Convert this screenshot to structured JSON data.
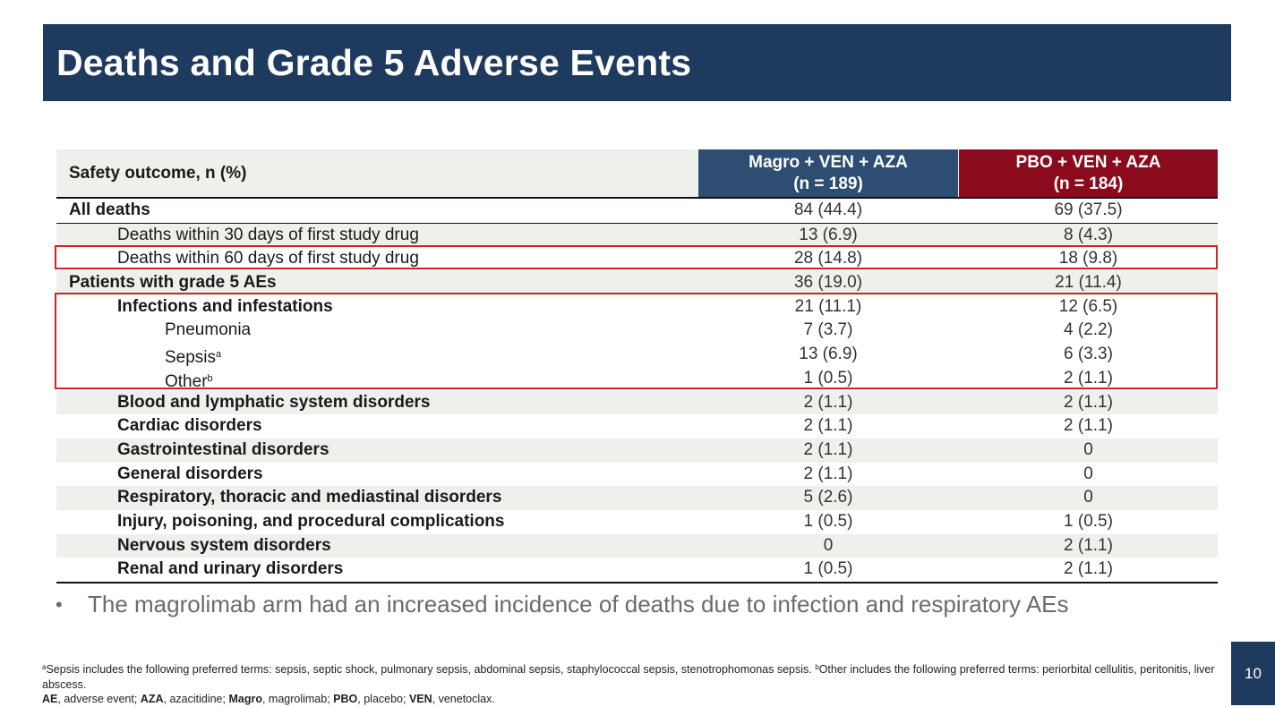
{
  "title": "Deaths and Grade 5 Adverse Events",
  "table": {
    "header_label": "Safety outcome, n (%)",
    "col1": {
      "line1": "Magro + VEN + AZA",
      "line2": "(n = 189)",
      "color": "#2e4d72"
    },
    "col2": {
      "line1": "PBO + VEN + AZA",
      "line2": "(n = 184)",
      "color": "#8b0a1c"
    },
    "rows": [
      {
        "label": "All deaths",
        "v1": "84 (44.4)",
        "v2": "69 (37.5)"
      },
      {
        "label": "Deaths within 30 days of first study drug",
        "v1": "13 (6.9)",
        "v2": "8 (4.3)"
      },
      {
        "label": "Deaths within 60 days of first study drug",
        "v1": "28 (14.8)",
        "v2": "18 (9.8)"
      },
      {
        "label": "Patients with grade 5 AEs",
        "v1": "36 (19.0)",
        "v2": "21 (11.4)"
      },
      {
        "label": "Infections and infestations",
        "v1": "21 (11.1)",
        "v2": "12 (6.5)"
      },
      {
        "label": "Pneumonia",
        "v1": "7 (3.7)",
        "v2": "4 (2.2)"
      },
      {
        "label": "Sepsis",
        "sup": "a",
        "v1": "13 (6.9)",
        "v2": "6 (3.3)"
      },
      {
        "label": "Other",
        "sup": "b",
        "v1": "1 (0.5)",
        "v2": "2 (1.1)"
      },
      {
        "label": "Blood and lymphatic system disorders",
        "v1": "2 (1.1)",
        "v2": "2 (1.1)"
      },
      {
        "label": "Cardiac disorders",
        "v1": "2 (1.1)",
        "v2": "2 (1.1)"
      },
      {
        "label": "Gastrointestinal disorders",
        "v1": "2 (1.1)",
        "v2": "0"
      },
      {
        "label": "General disorders",
        "v1": "2 (1.1)",
        "v2": "0"
      },
      {
        "label": "Respiratory, thoracic and mediastinal disorders",
        "v1": "5 (2.6)",
        "v2": "0"
      },
      {
        "label": "Injury, poisoning, and procedural complications",
        "v1": "1 (0.5)",
        "v2": "1 (0.5)"
      },
      {
        "label": "Nervous system disorders",
        "v1": "0",
        "v2": "2 (1.1)"
      },
      {
        "label": "Renal and urinary disorders",
        "v1": "1 (0.5)",
        "v2": "2 (1.1)"
      }
    ],
    "highlight_color": "#d2232a"
  },
  "bullet": {
    "symbol": "•",
    "text": "The magrolimab arm had an increased incidence of deaths due to infection and respiratory AEs"
  },
  "footnotes": {
    "sup_a": "a",
    "note_a": "Sepsis includes the following preferred terms: sepsis, septic shock, pulmonary sepsis, abdominal sepsis, staphylococcal sepsis, stenotrophomonas sepsis. ",
    "sup_b": "b",
    "note_b": "Other includes the following preferred terms: periorbital cellulitis, peritonitis, liver abscess.",
    "abbr": [
      {
        "term": "AE",
        "def": ", adverse event; "
      },
      {
        "term": "AZA",
        "def": ", azacitidine; "
      },
      {
        "term": "Magro",
        "def": ", magrolimab; "
      },
      {
        "term": "PBO",
        "def": ", placebo; "
      },
      {
        "term": "VEN",
        "def": ", venetoclax."
      }
    ]
  },
  "page_number": "10"
}
